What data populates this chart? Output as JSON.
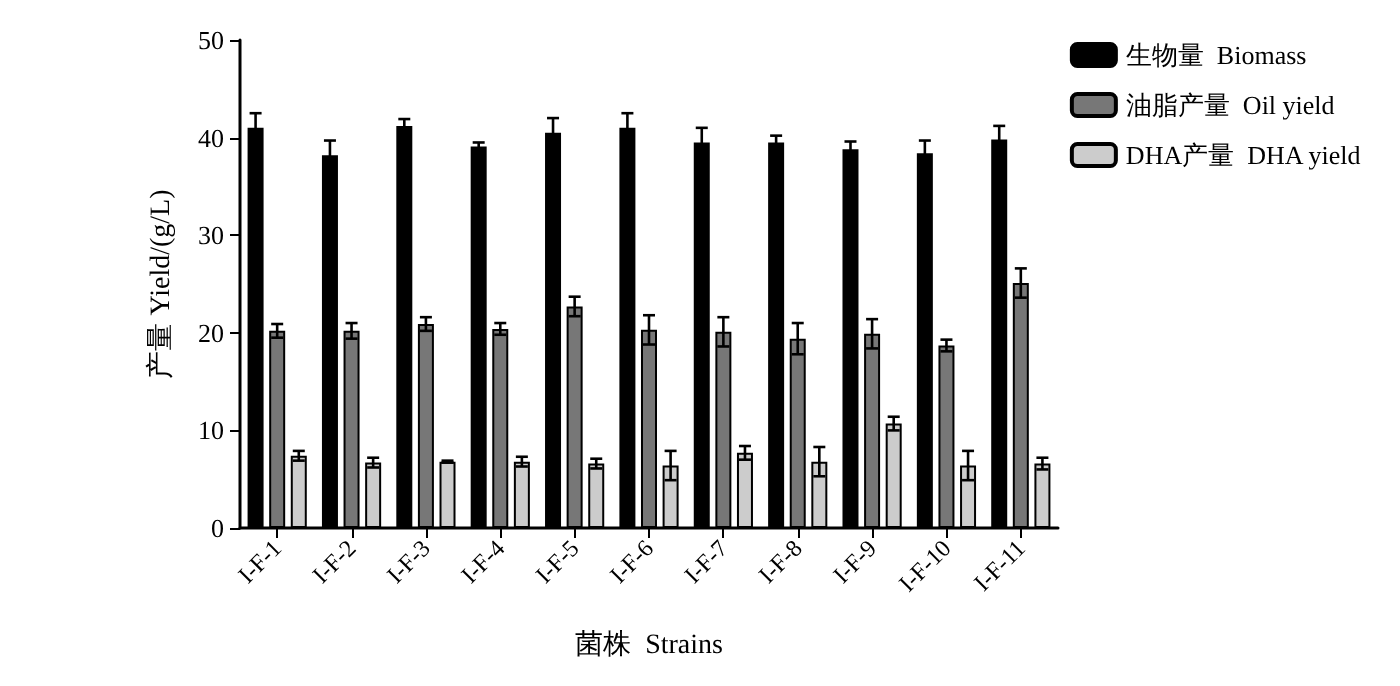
{
  "chart_data": {
    "type": "bar",
    "xlabel": "菌株  Strains",
    "ylabel": "产量 Yield/(g/L)",
    "categories": [
      "I-F-1",
      "I-F-2",
      "I-F-3",
      "I-F-4",
      "I-F-5",
      "I-F-6",
      "I-F-7",
      "I-F-8",
      "I-F-9",
      "I-F-10",
      "I-F-11"
    ],
    "series": [
      {
        "name": "生物量  Biomass",
        "color": "#000000",
        "values": [
          41.0,
          38.2,
          41.2,
          39.1,
          40.5,
          41.0,
          39.5,
          39.5,
          38.8,
          38.4,
          39.8
        ],
        "errors": [
          1.5,
          1.5,
          0.7,
          0.4,
          1.5,
          1.5,
          1.5,
          0.7,
          0.8,
          1.3,
          1.4
        ]
      },
      {
        "name": "油脂产量  Oil yield",
        "color": "#777777",
        "values": [
          20.2,
          20.2,
          20.9,
          20.4,
          22.7,
          20.3,
          20.1,
          19.4,
          19.9,
          18.7,
          25.1
        ],
        "errors": [
          0.7,
          0.8,
          0.7,
          0.6,
          1.0,
          1.5,
          1.5,
          1.6,
          1.5,
          0.6,
          1.5
        ]
      },
      {
        "name": "DHA产量  DHA yield",
        "color": "#cccccc",
        "values": [
          7.4,
          6.7,
          6.8,
          6.8,
          6.6,
          6.4,
          7.7,
          6.8,
          10.7,
          6.4,
          6.6
        ],
        "errors": [
          0.5,
          0.5,
          0.1,
          0.5,
          0.5,
          1.5,
          0.7,
          1.5,
          0.7,
          1.5,
          0.6
        ]
      }
    ],
    "ylim": [
      0,
      50
    ],
    "yticks": [
      0,
      10,
      20,
      30,
      40,
      50
    ],
    "grid": false,
    "legend": "top right"
  }
}
